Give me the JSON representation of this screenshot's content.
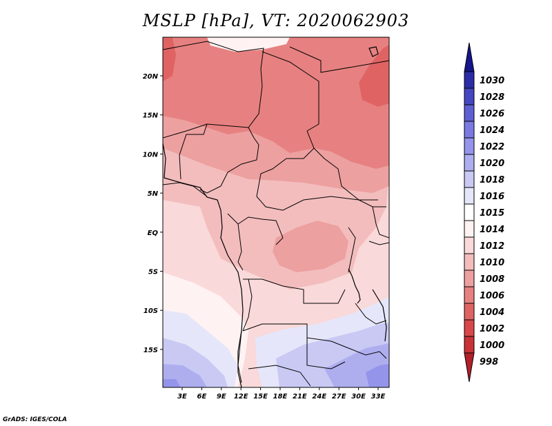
{
  "title": "MSLP [hPa], VT: 2020062903",
  "credit": "GrADS: IGES/COLA",
  "lat_labels": [
    "20N",
    "15N",
    "10N",
    "5N",
    "EQ",
    "5S",
    "10S",
    "15S"
  ],
  "lon_labels": [
    "3E",
    "6E",
    "9E",
    "12E",
    "15E",
    "18E",
    "21E",
    "24E",
    "27E",
    "30E",
    "33E"
  ],
  "colorbar": {
    "labels": [
      "998",
      "1000",
      "1002",
      "1004",
      "1006",
      "1008",
      "1010",
      "1012",
      "1014",
      "1015",
      "1016",
      "1018",
      "1020",
      "1022",
      "1024",
      "1026",
      "1028",
      "1030"
    ],
    "colors": [
      "#b2202a",
      "#c93238",
      "#d9474b",
      "#e06363",
      "#e78181",
      "#eda0a0",
      "#f3bdbd",
      "#f9d9d9",
      "#fff2f2",
      "#ffffff",
      "#e6e6fa",
      "#c9c9f4",
      "#aeaeef",
      "#9494ea",
      "#7a7ae2",
      "#5f5fd4",
      "#4646c2",
      "#2c2ca8",
      "#15158c"
    ]
  },
  "fields": {
    "colors": {
      "p1003": "#e06363",
      "p1006": "#e78181",
      "p1008": "#eda0a0",
      "p1010": "#f3bdbd",
      "p1012": "#f9d9d9",
      "p1014": "#fff2f2",
      "p1016": "#e6e6fa",
      "p1018": "#c9c9f4",
      "p1020": "#aeaeef",
      "p1022": "#9494ea"
    }
  }
}
